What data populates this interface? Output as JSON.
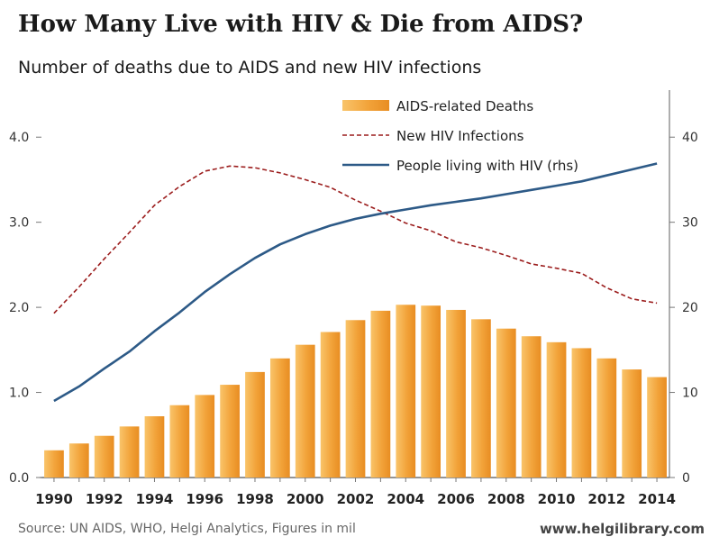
{
  "title": "How Many Live with HIV & Die from AIDS?",
  "subtitle": "Number of deaths due to AIDS and new HIV infections",
  "footer": {
    "source": "Source: UN AIDS, WHO, Helgi Analytics, Figures in mil",
    "website": "www.helgilibrary.com"
  },
  "chart_data": {
    "type": "bar",
    "categories": [
      1990,
      1991,
      1992,
      1993,
      1994,
      1995,
      1996,
      1997,
      1998,
      1999,
      2000,
      2001,
      2002,
      2003,
      2004,
      2005,
      2006,
      2007,
      2008,
      2009,
      2010,
      2011,
      2012,
      2013,
      2014
    ],
    "x_tick_labels": [
      "1990",
      "1992",
      "1994",
      "1996",
      "1998",
      "2000",
      "2002",
      "2004",
      "2006",
      "2008",
      "2010",
      "2012",
      "2014"
    ],
    "y_left": {
      "ylim": [
        0,
        4.5
      ],
      "ticks": [
        "0.0",
        "1.0",
        "2.0",
        "3.0",
        "4.0"
      ]
    },
    "y_right": {
      "ylim": [
        0,
        45
      ],
      "ticks": [
        "0",
        "10",
        "20",
        "30",
        "40"
      ]
    },
    "legend_position": "top-center",
    "series": [
      {
        "name": "AIDS-related Deaths",
        "type": "bar",
        "axis": "left",
        "color": "#f3a73a",
        "values": [
          0.32,
          0.4,
          0.49,
          0.6,
          0.72,
          0.85,
          0.97,
          1.09,
          1.24,
          1.4,
          1.56,
          1.71,
          1.85,
          1.96,
          2.03,
          2.02,
          1.97,
          1.86,
          1.75,
          1.66,
          1.59,
          1.52,
          1.4,
          1.27,
          1.18
        ]
      },
      {
        "name": "New HIV Infections",
        "type": "line",
        "style": "dashed",
        "axis": "left",
        "color": "#9b1c1c",
        "values": [
          1.93,
          2.24,
          2.57,
          2.88,
          3.2,
          3.42,
          3.6,
          3.66,
          3.64,
          3.58,
          3.5,
          3.41,
          3.26,
          3.13,
          2.99,
          2.9,
          2.77,
          2.7,
          2.61,
          2.51,
          2.46,
          2.4,
          2.23,
          2.1,
          2.05
        ]
      },
      {
        "name": "People living with HIV (rhs)",
        "type": "line",
        "style": "solid",
        "axis": "right",
        "color": "#2d5a87",
        "values": [
          9.0,
          10.7,
          12.8,
          14.8,
          17.2,
          19.4,
          21.8,
          23.9,
          25.8,
          27.4,
          28.6,
          29.6,
          30.4,
          31.0,
          31.5,
          32.0,
          32.4,
          32.8,
          33.3,
          33.8,
          34.3,
          34.8,
          35.5,
          36.2,
          36.9
        ]
      }
    ]
  }
}
